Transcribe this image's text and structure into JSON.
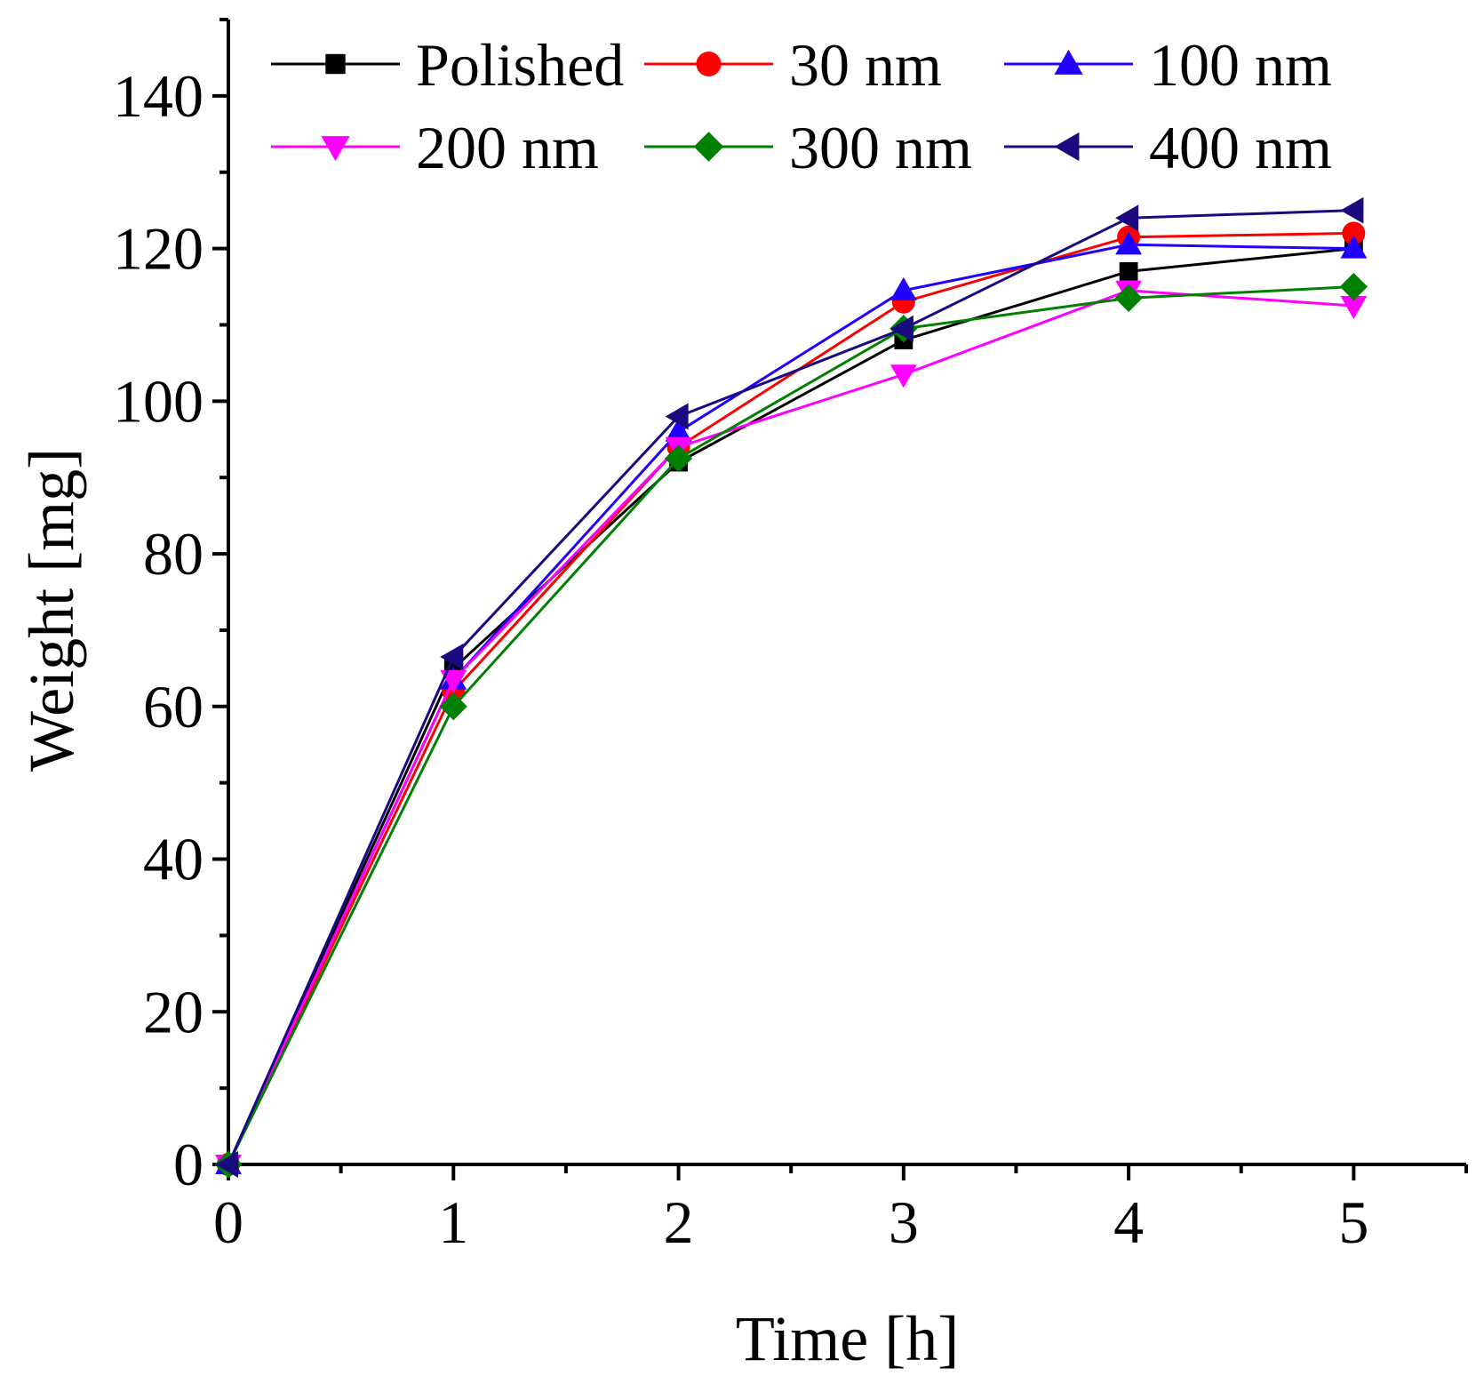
{
  "chart_data": {
    "type": "line",
    "title": "",
    "xlabel": "Time [h]",
    "ylabel": "Weight [mg]",
    "xlim": [
      0,
      5.5
    ],
    "ylim": [
      0,
      150
    ],
    "x_ticks": [
      "0",
      "1",
      "2",
      "3",
      "4",
      "5"
    ],
    "y_ticks": [
      "0",
      "20",
      "40",
      "60",
      "80",
      "100",
      "120",
      "140"
    ],
    "x": [
      0,
      1,
      2,
      3,
      4,
      5
    ],
    "legend_position": "top",
    "series": [
      {
        "name": "Polished",
        "color": "#000000",
        "marker": "square",
        "values": [
          0,
          65,
          92,
          108,
          117,
          120
        ]
      },
      {
        "name": "30 nm",
        "color": "#ff0000",
        "marker": "circle",
        "values": [
          0,
          62,
          94,
          113,
          121.5,
          122
        ]
      },
      {
        "name": "100 nm",
        "color": "#2200ff",
        "marker": "triangle-up",
        "values": [
          0,
          63.5,
          96,
          114.5,
          120.5,
          120
        ]
      },
      {
        "name": "200 nm",
        "color": "#ff00ff",
        "marker": "triangle-down",
        "values": [
          0,
          63.5,
          94,
          103.5,
          114.5,
          112.5
        ]
      },
      {
        "name": "300 nm",
        "color": "#008000",
        "marker": "diamond",
        "values": [
          0,
          60,
          92.5,
          109.5,
          113.5,
          115
        ]
      },
      {
        "name": "400 nm",
        "color": "#1a0a80",
        "marker": "triangle-left",
        "values": [
          0,
          66.5,
          98,
          109.5,
          124,
          125
        ]
      }
    ]
  }
}
